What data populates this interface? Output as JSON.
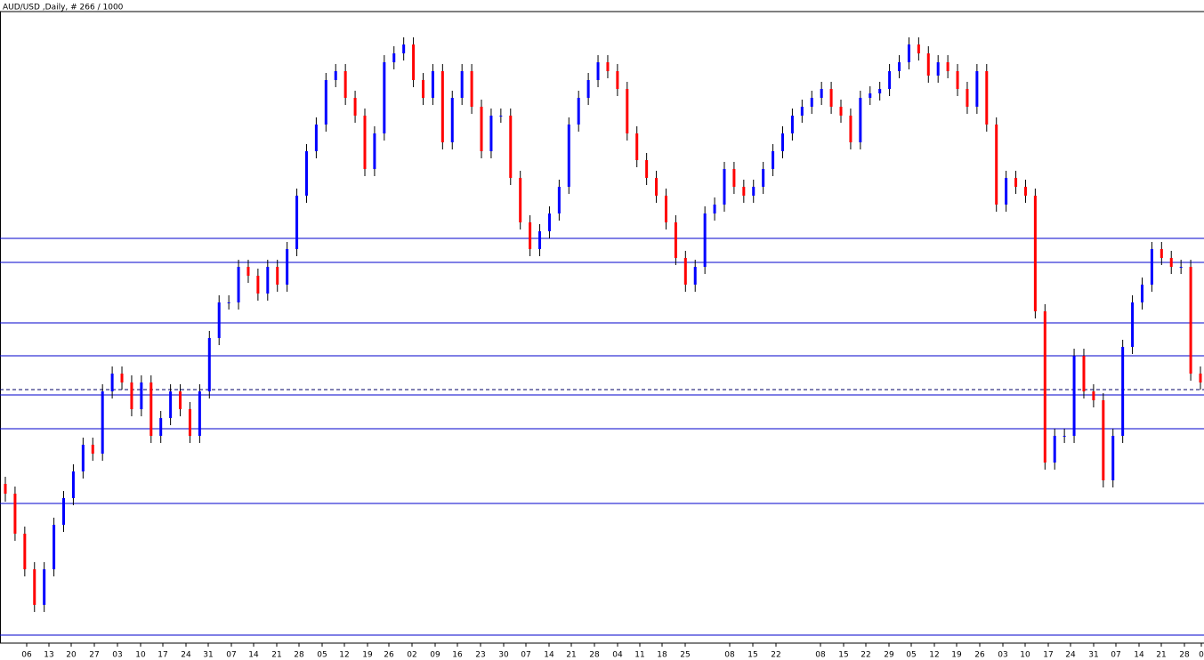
{
  "chart_data": {
    "type": "candlestick",
    "title": "AUD/USD ,Daily, # 266 / 1000",
    "ylim": [
      0,
      700
    ],
    "up_color": "#0000ff",
    "down_color": "#ff0000",
    "level_color": "#0000cc",
    "levels": [
      446,
      419,
      351,
      314,
      270,
      232,
      148
    ],
    "dashed_level": 276,
    "xticks": [
      "06",
      "13",
      "20",
      "27",
      "03",
      "10",
      "17",
      "24",
      "31",
      "07",
      "14",
      "21",
      "28",
      "05",
      "12",
      "19",
      "26",
      "02",
      "09",
      "16",
      "23",
      "30",
      "07",
      "14",
      "21",
      "28",
      "04",
      "11",
      "18",
      "25",
      "08",
      "15",
      "22",
      "08",
      "15",
      "22",
      "29",
      "05",
      "12",
      "19",
      "26",
      "03",
      "10",
      "17",
      "24",
      "31",
      "07",
      "14",
      "21",
      "28",
      "0"
    ],
    "candles": [
      [
        170,
        178,
        150,
        159
      ],
      [
        159,
        167,
        106,
        114
      ],
      [
        114,
        122,
        66,
        74
      ],
      [
        74,
        82,
        26,
        34
      ],
      [
        34,
        82,
        26,
        74
      ],
      [
        74,
        132,
        66,
        124
      ],
      [
        124,
        162,
        116,
        154
      ],
      [
        154,
        192,
        146,
        184
      ],
      [
        184,
        222,
        176,
        214
      ],
      [
        214,
        222,
        196,
        204
      ],
      [
        204,
        282,
        196,
        274
      ],
      [
        274,
        302,
        266,
        294
      ],
      [
        294,
        302,
        276,
        284
      ],
      [
        284,
        292,
        246,
        254
      ],
      [
        254,
        292,
        246,
        284
      ],
      [
        284,
        292,
        216,
        224
      ],
      [
        224,
        252,
        216,
        244
      ],
      [
        244,
        282,
        236,
        274
      ],
      [
        274,
        282,
        246,
        254
      ],
      [
        254,
        262,
        216,
        224
      ],
      [
        224,
        282,
        216,
        274
      ],
      [
        274,
        342,
        266,
        334
      ],
      [
        334,
        382,
        326,
        374
      ],
      [
        374,
        382,
        366,
        374
      ],
      [
        374,
        422,
        366,
        414
      ],
      [
        414,
        422,
        396,
        404
      ],
      [
        404,
        412,
        376,
        384
      ],
      [
        384,
        422,
        376,
        414
      ],
      [
        414,
        422,
        386,
        394
      ],
      [
        394,
        442,
        386,
        434
      ],
      [
        434,
        502,
        426,
        494
      ],
      [
        494,
        552,
        486,
        544
      ],
      [
        544,
        582,
        536,
        574
      ],
      [
        574,
        632,
        566,
        624
      ],
      [
        624,
        642,
        616,
        634
      ],
      [
        634,
        642,
        596,
        604
      ],
      [
        604,
        612,
        576,
        584
      ],
      [
        584,
        592,
        516,
        524
      ],
      [
        524,
        572,
        516,
        564
      ],
      [
        564,
        652,
        556,
        644
      ],
      [
        644,
        662,
        636,
        654
      ],
      [
        654,
        672,
        646,
        664
      ],
      [
        664,
        672,
        616,
        624
      ],
      [
        624,
        632,
        596,
        604
      ],
      [
        604,
        642,
        596,
        634
      ],
      [
        634,
        642,
        546,
        554
      ],
      [
        554,
        612,
        546,
        604
      ],
      [
        604,
        642,
        596,
        634
      ],
      [
        634,
        642,
        586,
        594
      ],
      [
        594,
        602,
        536,
        544
      ],
      [
        544,
        592,
        536,
        584
      ],
      [
        584,
        592,
        576,
        584
      ],
      [
        584,
        592,
        506,
        514
      ],
      [
        514,
        522,
        456,
        464
      ],
      [
        464,
        472,
        426,
        434
      ],
      [
        434,
        462,
        426,
        454
      ],
      [
        454,
        482,
        446,
        474
      ],
      [
        474,
        512,
        466,
        504
      ],
      [
        504,
        582,
        496,
        574
      ],
      [
        574,
        612,
        566,
        604
      ],
      [
        604,
        632,
        596,
        624
      ],
      [
        624,
        652,
        616,
        644
      ],
      [
        644,
        652,
        626,
        634
      ],
      [
        634,
        642,
        606,
        614
      ],
      [
        614,
        622,
        556,
        564
      ],
      [
        564,
        572,
        526,
        534
      ],
      [
        534,
        542,
        506,
        514
      ],
      [
        514,
        522,
        486,
        494
      ],
      [
        494,
        502,
        456,
        464
      ],
      [
        464,
        472,
        416,
        424
      ],
      [
        424,
        432,
        386,
        394
      ],
      [
        394,
        422,
        386,
        414
      ],
      [
        414,
        482,
        406,
        474
      ],
      [
        474,
        492,
        466,
        484
      ],
      [
        484,
        532,
        476,
        524
      ],
      [
        524,
        532,
        496,
        504
      ],
      [
        504,
        512,
        486,
        494
      ],
      [
        494,
        512,
        486,
        504
      ],
      [
        504,
        532,
        496,
        524
      ],
      [
        524,
        552,
        516,
        544
      ],
      [
        544,
        572,
        536,
        564
      ],
      [
        564,
        592,
        556,
        584
      ],
      [
        584,
        602,
        576,
        594
      ],
      [
        594,
        612,
        586,
        604
      ],
      [
        604,
        622,
        596,
        614
      ],
      [
        614,
        622,
        586,
        594
      ],
      [
        594,
        602,
        576,
        584
      ],
      [
        584,
        592,
        546,
        554
      ],
      [
        554,
        612,
        546,
        604
      ],
      [
        604,
        617,
        596,
        609
      ],
      [
        609,
        622,
        601,
        614
      ],
      [
        614,
        642,
        606,
        634
      ],
      [
        634,
        652,
        626,
        644
      ],
      [
        644,
        672,
        636,
        664
      ],
      [
        664,
        672,
        646,
        654
      ],
      [
        654,
        662,
        621,
        629
      ],
      [
        629,
        652,
        621,
        644
      ],
      [
        644,
        652,
        626,
        634
      ],
      [
        634,
        642,
        606,
        614
      ],
      [
        614,
        622,
        586,
        594
      ],
      [
        594,
        642,
        586,
        634
      ],
      [
        634,
        642,
        566,
        574
      ],
      [
        574,
        582,
        476,
        484
      ],
      [
        484,
        522,
        476,
        514
      ],
      [
        514,
        522,
        496,
        504
      ],
      [
        504,
        512,
        486,
        494
      ],
      [
        494,
        502,
        356,
        364
      ],
      [
        364,
        372,
        186,
        194
      ],
      [
        194,
        232,
        186,
        224
      ],
      [
        224,
        232,
        216,
        224
      ],
      [
        224,
        322,
        216,
        314
      ],
      [
        314,
        322,
        266,
        274
      ],
      [
        274,
        282,
        256,
        264
      ],
      [
        264,
        272,
        166,
        174
      ],
      [
        174,
        232,
        166,
        224
      ],
      [
        224,
        332,
        216,
        324
      ],
      [
        324,
        382,
        316,
        374
      ],
      [
        374,
        402,
        366,
        394
      ],
      [
        394,
        442,
        386,
        434
      ],
      [
        434,
        442,
        416,
        424
      ],
      [
        424,
        432,
        406,
        414
      ],
      [
        414,
        422,
        406,
        414
      ],
      [
        414,
        422,
        286,
        294
      ],
      [
        294,
        302,
        276,
        284
      ]
    ]
  }
}
